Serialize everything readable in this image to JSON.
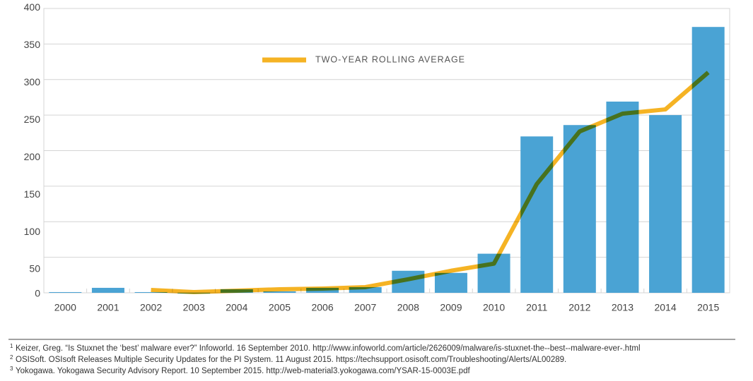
{
  "chart_data": {
    "type": "bar",
    "categories": [
      "2000",
      "2001",
      "2002",
      "2003",
      "2004",
      "2005",
      "2006",
      "2007",
      "2008",
      "2009",
      "2010",
      "2011",
      "2012",
      "2013",
      "2014",
      "2015"
    ],
    "series": [
      {
        "type": "bar",
        "color": "#4aa3d4",
        "values": [
          1,
          7,
          1,
          0,
          5,
          2,
          7,
          8,
          31,
          28,
          55,
          220,
          236,
          269,
          250,
          374
        ]
      },
      {
        "type": "line",
        "name": "TWO-YEAR ROLLING AVERAGE",
        "color": "#f5b324",
        "values": [
          null,
          null,
          4,
          1,
          3,
          5,
          6,
          8,
          19,
          31,
          41,
          153,
          227,
          252,
          258,
          310
        ]
      }
    ],
    "ylim": [
      0,
      400
    ],
    "yticks": [
      0,
      50,
      100,
      150,
      200,
      250,
      300,
      350,
      400
    ],
    "grid": true
  },
  "footnotes": [
    {
      "number": "1",
      "text": "Keizer, Greg. “Is Stuxnet the ‘best’ malware ever?” Infoworld. 16 September 2010. http://www.infoworld.com/article/2626009/malware/is-stuxnet-the--best--malware-ever-.html"
    },
    {
      "number": "2",
      "text": "OSISoft. OSIsoft Releases Multiple Security Updates for the PI System. 11 August 2015. https://techsupport.osisoft.com/Troubleshooting/Alerts/AL00289."
    },
    {
      "number": "3",
      "text": "Yokogawa. Yokogawa Security Advisory Report. 10 September 2015. http://web-material3.yokogawa.com/YSAR-15-0003E.pdf"
    }
  ]
}
